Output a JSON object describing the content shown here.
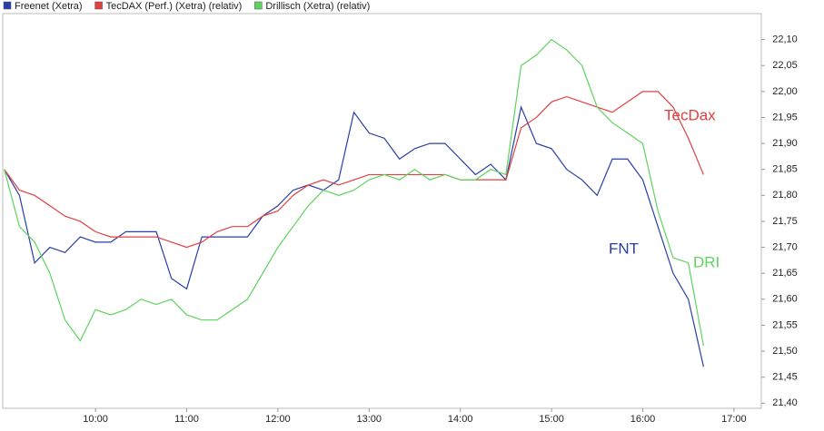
{
  "chart_data": {
    "type": "line",
    "legend": "top-left",
    "x": [
      "09:00",
      "09:10",
      "09:20",
      "09:30",
      "09:40",
      "09:50",
      "10:00",
      "10:10",
      "10:20",
      "10:30",
      "10:40",
      "10:50",
      "11:00",
      "11:10",
      "11:20",
      "11:30",
      "11:40",
      "11:50",
      "12:00",
      "12:10",
      "12:20",
      "12:30",
      "12:40",
      "12:50",
      "13:00",
      "13:10",
      "13:20",
      "13:30",
      "13:40",
      "13:50",
      "14:00",
      "14:10",
      "14:20",
      "14:30",
      "14:40",
      "14:50",
      "15:00",
      "15:10",
      "15:20",
      "15:30",
      "15:40",
      "15:50",
      "16:00",
      "16:10",
      "16:20",
      "16:30",
      "16:40"
    ],
    "series": [
      {
        "name": "Freenet (Xetra)",
        "color": "#2a3fa6",
        "values": [
          21.85,
          21.8,
          21.67,
          21.7,
          21.69,
          21.72,
          21.71,
          21.71,
          21.73,
          21.73,
          21.73,
          21.64,
          21.62,
          21.72,
          21.72,
          21.72,
          21.72,
          21.76,
          21.78,
          21.81,
          21.82,
          21.81,
          21.83,
          21.96,
          21.92,
          21.91,
          21.87,
          21.89,
          21.9,
          21.9,
          21.87,
          21.84,
          21.86,
          21.83,
          21.97,
          21.9,
          21.89,
          21.85,
          21.83,
          21.8,
          21.87,
          21.87,
          21.83,
          21.74,
          21.65,
          21.6,
          21.47
        ]
      },
      {
        "name": "TecDAX (Perf.) (Xetra) (relativ)",
        "color": "#e04040",
        "values": [
          21.85,
          21.81,
          21.8,
          21.78,
          21.76,
          21.75,
          21.73,
          21.72,
          21.72,
          21.72,
          21.72,
          21.71,
          21.7,
          21.71,
          21.73,
          21.74,
          21.74,
          21.76,
          21.77,
          21.8,
          21.82,
          21.83,
          21.82,
          21.83,
          21.84,
          21.84,
          21.84,
          21.84,
          21.84,
          21.84,
          21.83,
          21.83,
          21.83,
          21.83,
          21.93,
          21.95,
          21.98,
          21.99,
          21.98,
          21.97,
          21.96,
          21.98,
          22.0,
          22.0,
          21.97,
          21.91,
          21.84
        ]
      },
      {
        "name": "Drillisch (Xetra) (relativ)",
        "color": "#5fd35f",
        "values": [
          21.85,
          21.74,
          21.71,
          21.65,
          21.56,
          21.52,
          21.58,
          21.57,
          21.58,
          21.6,
          21.59,
          21.6,
          21.57,
          21.56,
          21.56,
          21.58,
          21.6,
          21.65,
          21.7,
          21.74,
          21.78,
          21.81,
          21.8,
          21.81,
          21.83,
          21.84,
          21.83,
          21.85,
          21.83,
          21.84,
          21.83,
          21.83,
          21.85,
          21.84,
          22.05,
          22.07,
          22.1,
          22.08,
          22.05,
          21.97,
          21.94,
          21.92,
          21.9,
          21.77,
          21.68,
          21.67,
          21.51
        ]
      }
    ],
    "annotations": [
      "TecDax",
      "FNT",
      "DRI"
    ],
    "xlim": [
      "08:59",
      "17:18"
    ],
    "xticks": [
      "10:00",
      "11:00",
      "12:00",
      "13:00",
      "14:00",
      "15:00",
      "16:00",
      "17:00"
    ],
    "ylim": [
      21.39,
      22.15
    ],
    "yticks": [
      {
        "value": 21.4,
        "label": "21,40"
      },
      {
        "value": 21.45,
        "label": "21,45"
      },
      {
        "value": 21.5,
        "label": "21,50"
      },
      {
        "value": 21.55,
        "label": "21,55"
      },
      {
        "value": 21.6,
        "label": "21,60"
      },
      {
        "value": 21.65,
        "label": "21,65"
      },
      {
        "value": 21.7,
        "label": "21,70"
      },
      {
        "value": 21.75,
        "label": "21,75"
      },
      {
        "value": 21.8,
        "label": "21,80"
      },
      {
        "value": 21.85,
        "label": "21,85"
      },
      {
        "value": 21.9,
        "label": "21,90"
      },
      {
        "value": 21.95,
        "label": "21,95"
      },
      {
        "value": 22,
        "label": "22,00"
      },
      {
        "value": 22.05,
        "label": "22,05"
      },
      {
        "value": 22.1,
        "label": "22,10"
      }
    ],
    "grid": false
  }
}
